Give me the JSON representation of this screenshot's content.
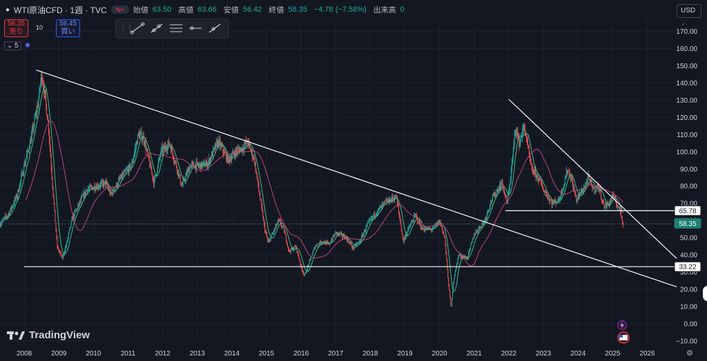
{
  "header": {
    "symbol_title": "WTI原油CFD · 1週 · TVC",
    "ohlc": [
      {
        "label": "始値",
        "value": "63.50"
      },
      {
        "label": "高値",
        "value": "63.66"
      },
      {
        "label": "安値",
        "value": "56.42"
      },
      {
        "label": "終値",
        "value": "58.35"
      }
    ],
    "change": "−4.78 (−7.58%)",
    "volume_label": "出来高",
    "volume_value": "0"
  },
  "trade": {
    "sell_price": "58.35",
    "sell_label": "売り",
    "quantity": "10",
    "buy_price": "58.45",
    "buy_label": "買い"
  },
  "indicator_count": "5",
  "currency": "USD",
  "logo_text": "TradingView",
  "chart_data": {
    "type": "candlestick",
    "timeframe": "weekly",
    "y_ticks": [
      170,
      160,
      150,
      140,
      130,
      120,
      110,
      100,
      90,
      80,
      70,
      60,
      50,
      40,
      30,
      20,
      10,
      0,
      -10
    ],
    "y_tick_labels": [
      "170.00",
      "160.00",
      "150.00",
      "140.00",
      "130.00",
      "120.00",
      "110.00",
      "100.00",
      "90.00",
      "80.00",
      "70.00",
      "60.00",
      "50.00",
      "40.00",
      "30.00",
      "20.00",
      "10.00",
      "0.00",
      "−10.00"
    ],
    "x_ticks": [
      2008,
      2009,
      2010,
      2011,
      2012,
      2013,
      2014,
      2015,
      2016,
      2017,
      2018,
      2019,
      2020,
      2021,
      2022,
      2023,
      2024,
      2025,
      2026
    ],
    "x_tick_labels": [
      "2008",
      "2009",
      "2010",
      "2011",
      "2012",
      "2013",
      "2014",
      "2015",
      "2016",
      "2017",
      "2018",
      "2019",
      "2020",
      "2021",
      "2022",
      "2023",
      "2024",
      "2025",
      "2026"
    ],
    "ylim": [
      -12,
      177
    ],
    "xlim": [
      2007.3,
      2026.75
    ],
    "price_path": [
      [
        2007.3,
        58
      ],
      [
        2007.55,
        64
      ],
      [
        2007.8,
        75
      ],
      [
        2008.0,
        92
      ],
      [
        2008.2,
        108
      ],
      [
        2008.4,
        128
      ],
      [
        2008.5,
        145
      ],
      [
        2008.55,
        140
      ],
      [
        2008.7,
        115
      ],
      [
        2008.85,
        72
      ],
      [
        2008.95,
        45
      ],
      [
        2009.1,
        38
      ],
      [
        2009.2,
        45
      ],
      [
        2009.4,
        62
      ],
      [
        2009.6,
        70
      ],
      [
        2009.8,
        78
      ],
      [
        2010.1,
        80
      ],
      [
        2010.35,
        82
      ],
      [
        2010.5,
        75
      ],
      [
        2010.8,
        85
      ],
      [
        2011.1,
        92
      ],
      [
        2011.3,
        110
      ],
      [
        2011.45,
        108
      ],
      [
        2011.6,
        95
      ],
      [
        2011.75,
        82
      ],
      [
        2011.95,
        100
      ],
      [
        2012.2,
        105
      ],
      [
        2012.45,
        88
      ],
      [
        2012.55,
        80
      ],
      [
        2012.8,
        92
      ],
      [
        2013.1,
        92
      ],
      [
        2013.3,
        93
      ],
      [
        2013.6,
        106
      ],
      [
        2013.9,
        95
      ],
      [
        2014.1,
        100
      ],
      [
        2014.3,
        102
      ],
      [
        2014.45,
        106
      ],
      [
        2014.65,
        95
      ],
      [
        2014.8,
        75
      ],
      [
        2014.95,
        55
      ],
      [
        2015.05,
        47
      ],
      [
        2015.35,
        60
      ],
      [
        2015.5,
        55
      ],
      [
        2015.65,
        42
      ],
      [
        2015.85,
        45
      ],
      [
        2016.0,
        33
      ],
      [
        2016.1,
        28
      ],
      [
        2016.4,
        45
      ],
      [
        2016.6,
        48
      ],
      [
        2016.8,
        46
      ],
      [
        2017.0,
        53
      ],
      [
        2017.3,
        50
      ],
      [
        2017.5,
        44
      ],
      [
        2017.7,
        48
      ],
      [
        2017.9,
        57
      ],
      [
        2018.1,
        63
      ],
      [
        2018.4,
        70
      ],
      [
        2018.75,
        74
      ],
      [
        2018.95,
        48
      ],
      [
        2019.1,
        55
      ],
      [
        2019.3,
        63
      ],
      [
        2019.5,
        55
      ],
      [
        2019.8,
        55
      ],
      [
        2020.0,
        60
      ],
      [
        2020.15,
        50
      ],
      [
        2020.25,
        25
      ],
      [
        2020.3,
        15
      ],
      [
        2020.33,
        8
      ],
      [
        2020.4,
        25
      ],
      [
        2020.55,
        40
      ],
      [
        2020.8,
        38
      ],
      [
        2021.0,
        52
      ],
      [
        2021.3,
        60
      ],
      [
        2021.5,
        72
      ],
      [
        2021.8,
        82
      ],
      [
        2021.95,
        70
      ],
      [
        2022.05,
        85
      ],
      [
        2022.2,
        115
      ],
      [
        2022.3,
        105
      ],
      [
        2022.45,
        115
      ],
      [
        2022.65,
        90
      ],
      [
        2022.85,
        85
      ],
      [
        2023.0,
        78
      ],
      [
        2023.25,
        70
      ],
      [
        2023.45,
        72
      ],
      [
        2023.6,
        82
      ],
      [
        2023.7,
        90
      ],
      [
        2023.8,
        85
      ],
      [
        2023.95,
        72
      ],
      [
        2024.2,
        80
      ],
      [
        2024.3,
        85
      ],
      [
        2024.45,
        78
      ],
      [
        2024.6,
        80
      ],
      [
        2024.75,
        68
      ],
      [
        2024.9,
        70
      ],
      [
        2025.0,
        75
      ],
      [
        2025.1,
        70
      ],
      [
        2025.2,
        67
      ],
      [
        2025.3,
        58
      ]
    ],
    "trendlines": [
      {
        "x1": 2008.35,
        "y1": 147.5,
        "x2": 2026.85,
        "y2": 21.5
      },
      {
        "x1": 2022.0,
        "y1": 130.5,
        "x2": 2026.85,
        "y2": 38.0
      },
      {
        "x1": 2008.0,
        "y1": 33.22,
        "x2": 2026.85,
        "y2": 33.22
      },
      {
        "x1": 2021.9,
        "y1": 65.78,
        "x2": 2026.85,
        "y2": 65.78
      }
    ],
    "price_labels": [
      {
        "value": 65.78,
        "text": "65.78",
        "style": "white"
      },
      {
        "value": 58.35,
        "text": "58.35",
        "style": "green"
      },
      {
        "value": 33.22,
        "text": "33.22",
        "style": "white"
      }
    ],
    "colors": {
      "background": "#131722",
      "up": "#26a69a",
      "down": "#ef5350",
      "ma_fast": "#3dbf8a",
      "ma_slow": "#c2447a",
      "trendline": "#ffffff",
      "grid": "#1e222d",
      "axis_text": "#d1d4dc"
    }
  }
}
